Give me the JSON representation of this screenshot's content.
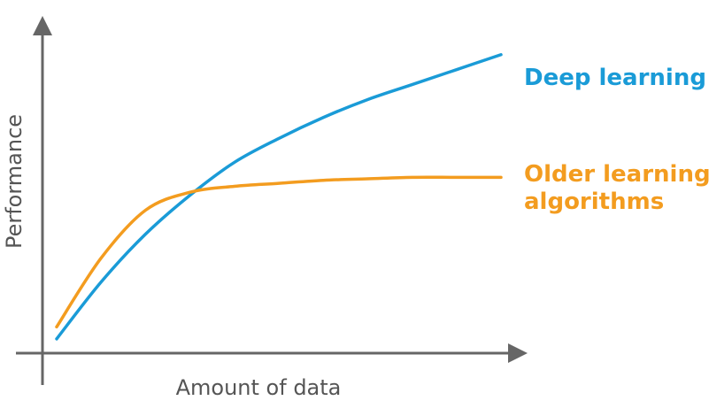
{
  "chart_data": {
    "type": "line",
    "title": "",
    "xlabel": "Amount of data",
    "ylabel": "Performance",
    "xlim": [
      0,
      100
    ],
    "ylim": [
      0,
      100
    ],
    "grid": false,
    "series": [
      {
        "name": "Deep learning",
        "label_lines": [
          "Deep learning"
        ],
        "color": "#1a9bd7",
        "x": [
          0,
          10,
          20,
          30,
          40,
          50,
          60,
          70,
          80,
          90,
          100
        ],
        "y": [
          3,
          22,
          38,
          51,
          62,
          70,
          77,
          83,
          88,
          93,
          98
        ]
      },
      {
        "name": "Older learning algorithms",
        "label_lines": [
          "Older learning",
          "algorithms"
        ],
        "color": "#f39c1f",
        "x": [
          0,
          10,
          20,
          30,
          40,
          50,
          60,
          70,
          80,
          90,
          100
        ],
        "y": [
          7,
          30,
          46,
          52,
          54,
          55,
          56,
          56.5,
          57,
          57,
          57
        ]
      }
    ]
  }
}
